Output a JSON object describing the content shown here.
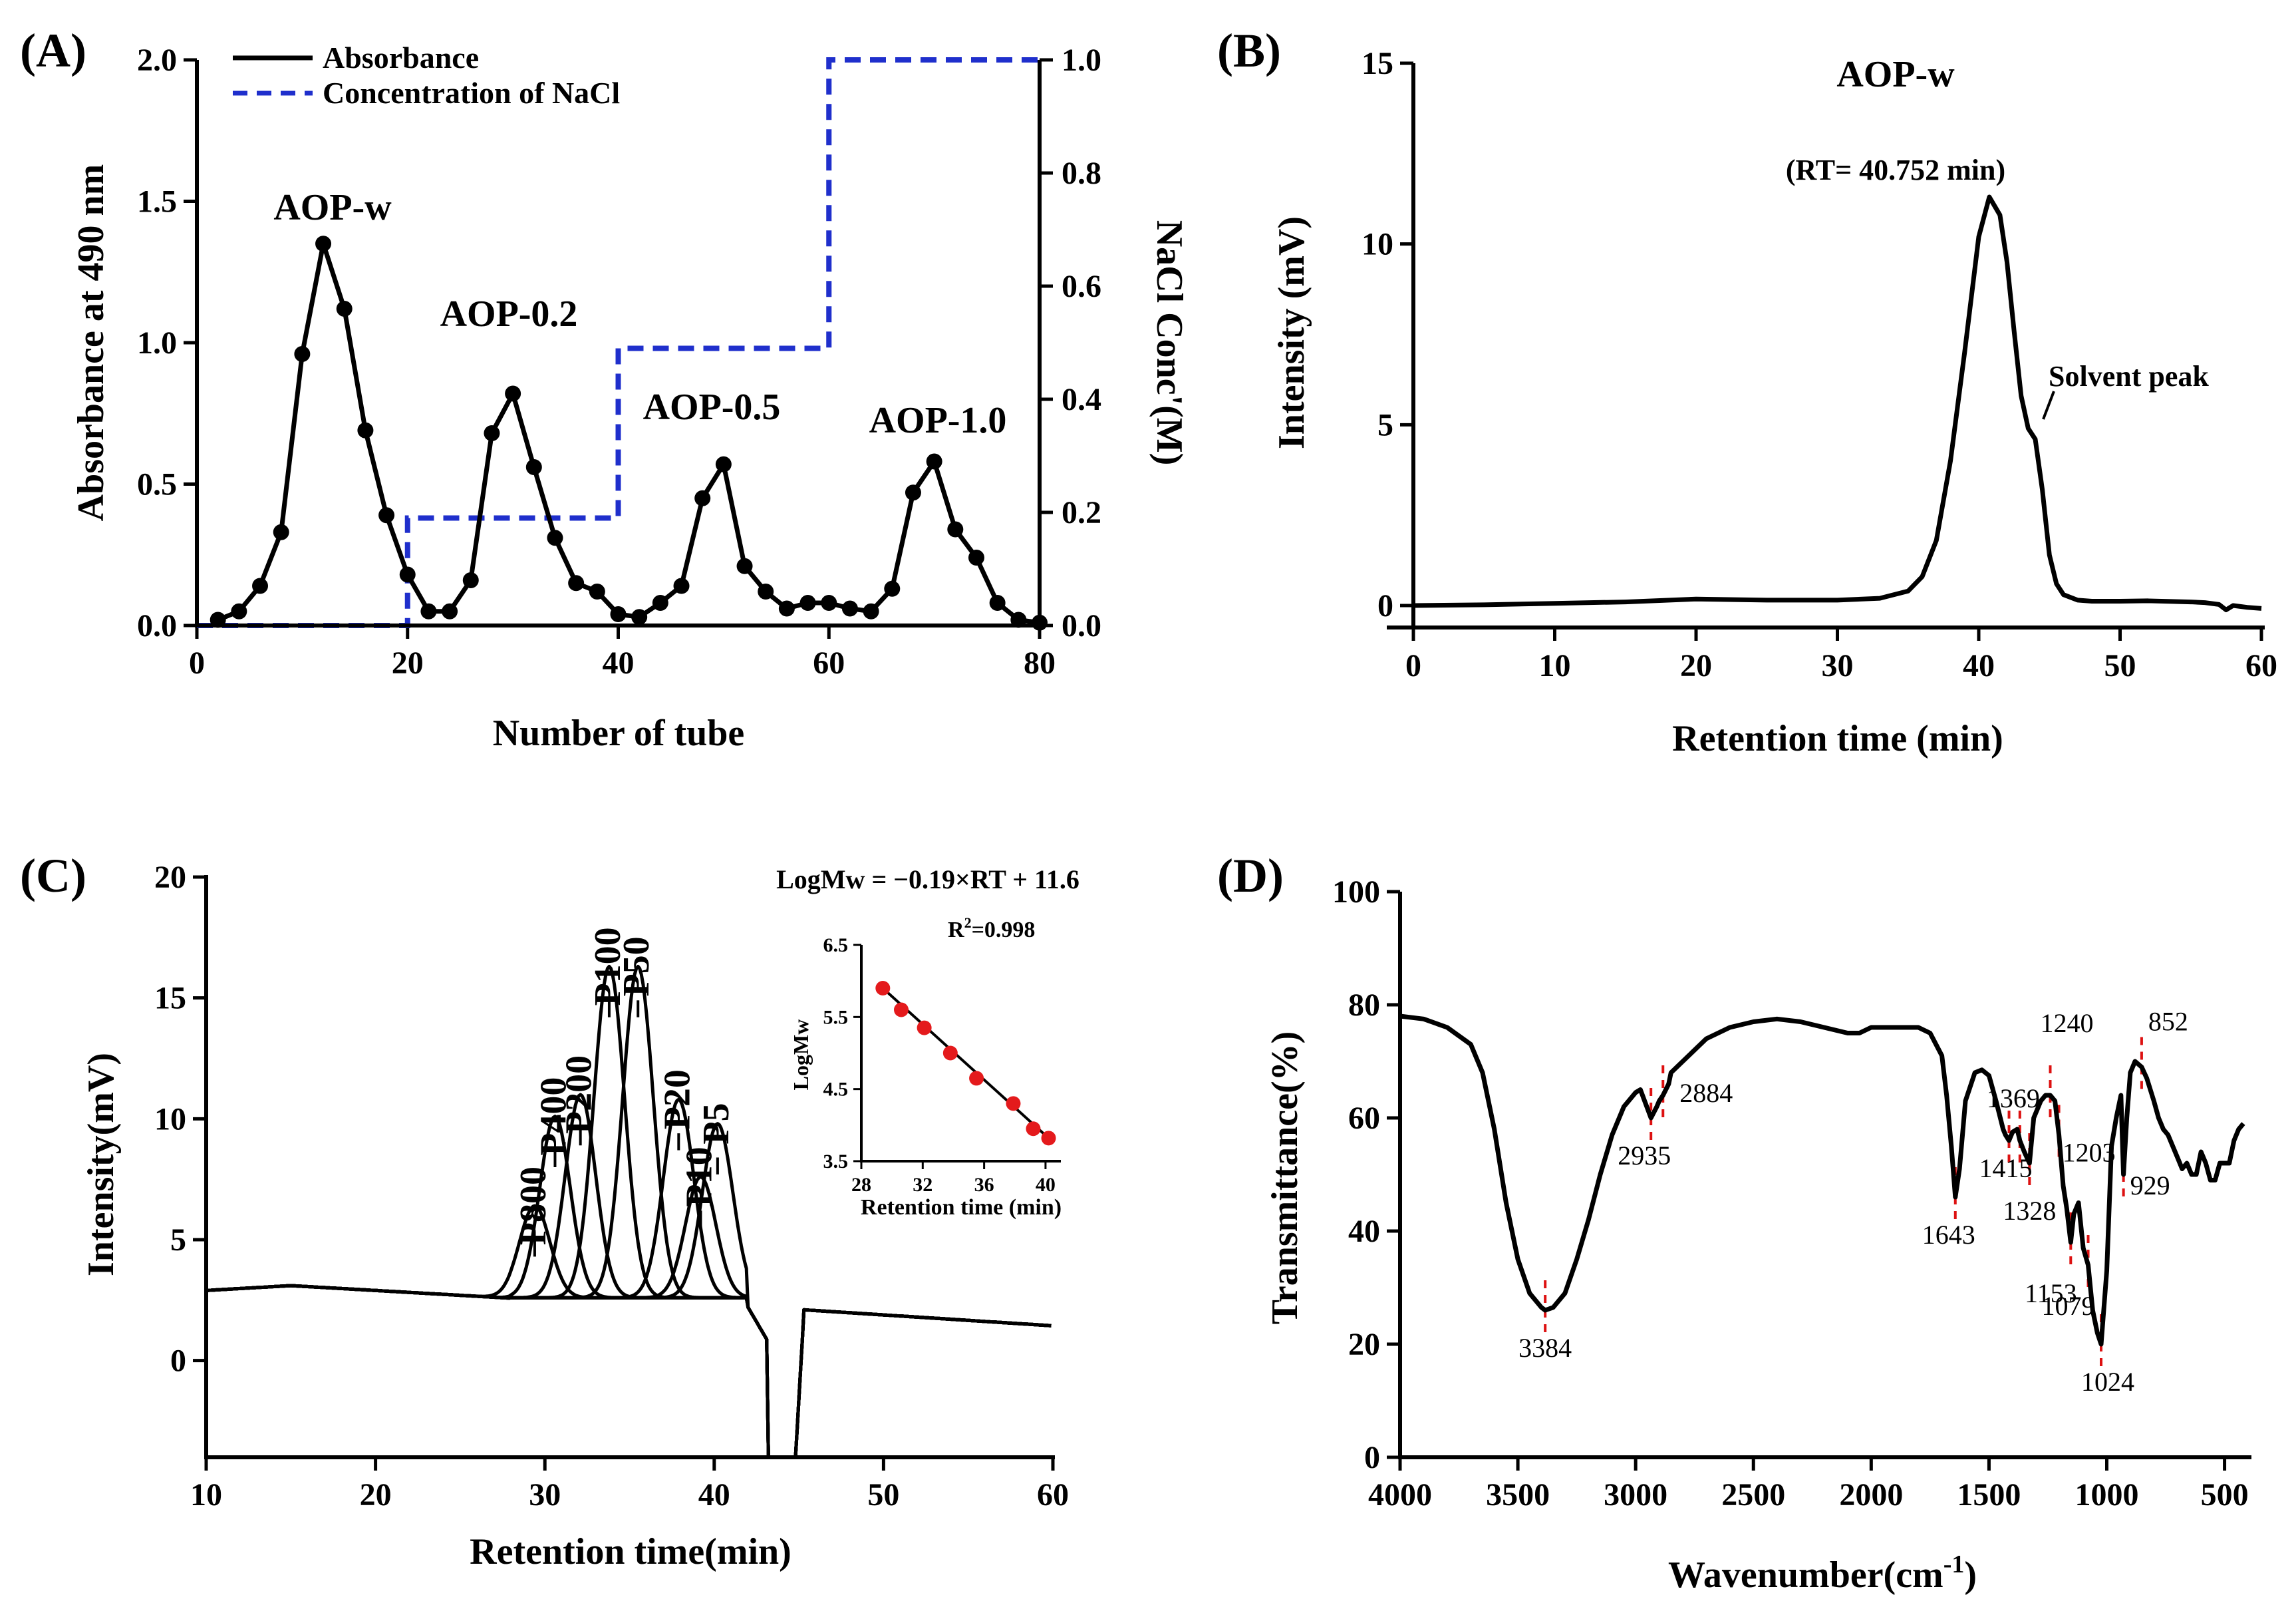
{
  "chart_data": [
    {
      "panel": "(A)",
      "type": "line",
      "xlabel": "Number of tube",
      "ylabel": "Absorbance at 490 nm",
      "y2label": "NaCl Conc'(M)",
      "xlim": [
        0,
        80
      ],
      "ylim": [
        0,
        2.0
      ],
      "y2lim": [
        0,
        1.0
      ],
      "xticks": [
        "0",
        "20",
        "40",
        "60",
        "80"
      ],
      "yticks": [
        "0.0",
        "0.5",
        "1.0",
        "1.5",
        "2.0"
      ],
      "y2ticks": [
        "0.0",
        "0.2",
        "0.4",
        "0.6",
        "0.8",
        "1.0"
      ],
      "legend": [
        "Absorbance",
        "Concentration of NaCl"
      ],
      "series": [
        {
          "name": "Absorbance",
          "color": "#000000",
          "x": [
            2,
            4,
            6,
            8,
            10,
            12,
            14,
            16,
            18,
            20,
            22,
            24,
            26,
            28,
            30,
            32,
            34,
            36,
            38,
            40,
            42,
            44,
            46,
            48,
            50,
            52,
            54,
            56,
            58,
            60,
            62,
            64,
            66,
            68,
            70,
            72,
            74,
            76,
            78,
            80
          ],
          "values": [
            0.02,
            0.05,
            0.14,
            0.33,
            0.96,
            1.35,
            1.12,
            0.69,
            0.39,
            0.18,
            0.05,
            0.05,
            0.16,
            0.68,
            0.82,
            0.56,
            0.31,
            0.15,
            0.12,
            0.04,
            0.03,
            0.08,
            0.14,
            0.45,
            0.57,
            0.21,
            0.12,
            0.06,
            0.08,
            0.08,
            0.06,
            0.05,
            0.13,
            0.47,
            0.58,
            0.34,
            0.24,
            0.08,
            0.02,
            0.01
          ]
        },
        {
          "name": "Concentration of NaCl",
          "color": "#1f2fcc",
          "x": [
            0,
            20,
            20,
            40,
            40,
            60,
            60,
            80
          ],
          "values": [
            0,
            0,
            0.19,
            0.19,
            0.49,
            0.49,
            1.0,
            1.0
          ]
        }
      ],
      "annotations": [
        "AOP-w",
        "AOP-0.2",
        "AOP-0.5",
        "AOP-1.0"
      ]
    },
    {
      "panel": "(B)",
      "type": "line",
      "xlabel": "Retention time (min)",
      "ylabel": "Intensity (mV)",
      "xlim": [
        0,
        60
      ],
      "ylim": [
        0,
        15
      ],
      "xticks": [
        "0",
        "10",
        "20",
        "30",
        "40",
        "50",
        "60"
      ],
      "yticks": [
        "0",
        "5",
        "10",
        "15"
      ],
      "series": [
        {
          "name": "AOP-w",
          "x": [
            0,
            5,
            10,
            15,
            20,
            25,
            30,
            33,
            35,
            36,
            37,
            38,
            39,
            40,
            40.75,
            41.5,
            42,
            42.5,
            43,
            43.5,
            44,
            44.5,
            45,
            45.5,
            46,
            47,
            48,
            50,
            52,
            55,
            56,
            57,
            57.5,
            58,
            59,
            60
          ],
          "values": [
            0,
            0.02,
            0.06,
            0.1,
            0.18,
            0.15,
            0.15,
            0.2,
            0.4,
            0.8,
            1.8,
            4.0,
            7.0,
            10.2,
            11.3,
            10.8,
            9.5,
            7.6,
            5.8,
            4.9,
            4.6,
            3.2,
            1.4,
            0.6,
            0.3,
            0.15,
            0.12,
            0.12,
            0.13,
            0.1,
            0.08,
            0.03,
            -0.12,
            0,
            -0.05,
            -0.08
          ]
        }
      ],
      "annotations": [
        "AOP-w",
        "(RT= 40.752 min)",
        "Solvent peak"
      ]
    },
    {
      "panel": "(C)",
      "type": "line",
      "xlabel": "Retention time(min)",
      "ylabel": "Intensity(mV)",
      "xlim": [
        10,
        60
      ],
      "ylim": [
        -4,
        20
      ],
      "xticks": [
        "10",
        "20",
        "30",
        "40",
        "50",
        "60"
      ],
      "yticks": [
        "0",
        "5",
        "10",
        "15",
        "20"
      ],
      "standards": [
        "P800",
        "P400",
        "P200",
        "P100",
        "P50",
        "P20",
        "P10",
        "P5"
      ],
      "peak_rt": [
        29.4,
        30.6,
        32.1,
        33.8,
        35.5,
        37.9,
        39.2,
        40.2
      ],
      "peak_height": [
        3.8,
        7.5,
        8.4,
        13.7,
        13.7,
        8.2,
        5.0,
        7.2
      ],
      "equation": "LogMw = −0.19×RT + 11.6",
      "inset": {
        "xlabel": "Retention time (min)",
        "ylabel": "LogMw",
        "xlim": [
          28,
          41
        ],
        "ylim": [
          3.5,
          6.5
        ],
        "xticks": [
          "28",
          "32",
          "36",
          "40"
        ],
        "yticks": [
          "3.5",
          "4.5",
          "5.5",
          "6.5"
        ],
        "r2_prefix": "R",
        "r2_sup": "2",
        "r2_value": "=0.998",
        "x": [
          29.4,
          30.6,
          32.1,
          33.8,
          35.5,
          37.9,
          39.2,
          40.2
        ],
        "values": [
          5.9,
          5.6,
          5.35,
          5.0,
          4.65,
          4.3,
          3.95,
          3.82
        ],
        "point_color": "#e41a1c"
      }
    },
    {
      "panel": "(D)",
      "type": "line",
      "xlabel_main": "Wavenumber(cm",
      "xlabel_sup": "-1",
      "xlabel_end": ")",
      "ylabel": "Transmittance(%)",
      "xlim": [
        4000,
        400
      ],
      "ylim": [
        0,
        100
      ],
      "xticks": [
        "4000",
        "3500",
        "3000",
        "2500",
        "2000",
        "1500",
        "1000",
        "500"
      ],
      "yticks": [
        "0",
        "20",
        "40",
        "60",
        "80",
        "100"
      ],
      "series": [
        {
          "name": "FT-IR",
          "x": [
            4000,
            3900,
            3800,
            3700,
            3650,
            3600,
            3550,
            3500,
            3450,
            3400,
            3384,
            3350,
            3300,
            3250,
            3200,
            3150,
            3100,
            3050,
            3000,
            2980,
            2935,
            2910,
            2900,
            2884,
            2860,
            2850,
            2800,
            2700,
            2600,
            2500,
            2400,
            2300,
            2200,
            2100,
            2050,
            2000,
            1950,
            1900,
            1850,
            1800,
            1750,
            1700,
            1680,
            1660,
            1643,
            1625,
            1600,
            1560,
            1530,
            1500,
            1470,
            1440,
            1430,
            1415,
            1400,
            1380,
            1369,
            1350,
            1328,
            1310,
            1280,
            1260,
            1240,
            1220,
            1203,
            1185,
            1170,
            1153,
            1140,
            1120,
            1100,
            1079,
            1060,
            1040,
            1024,
            1000,
            980,
            960,
            940,
            929,
            915,
            900,
            880,
            852,
            830,
            800,
            780,
            760,
            740,
            720,
            700,
            680,
            660,
            640,
            620,
            600,
            580,
            560,
            540,
            520,
            500,
            480,
            460,
            440,
            420
          ],
          "values": [
            78,
            77.5,
            76,
            73,
            68,
            58,
            45,
            35,
            29,
            26.5,
            26,
            26.5,
            29,
            35,
            42,
            50,
            57,
            62,
            64.5,
            65,
            60,
            62,
            63,
            64,
            66,
            68,
            70,
            74,
            76,
            77,
            77.5,
            77,
            76,
            75,
            75,
            76,
            76,
            76,
            76,
            76,
            75,
            71,
            64,
            55,
            46,
            51,
            63,
            68,
            68.5,
            67.5,
            63,
            58,
            57,
            56,
            57.5,
            58,
            56,
            54,
            52,
            60,
            63,
            64,
            64,
            63,
            57,
            48,
            44,
            38,
            43,
            45,
            37,
            34,
            26,
            22,
            20,
            33,
            55,
            60,
            64,
            50,
            60,
            68,
            70,
            69,
            67,
            63,
            60,
            58,
            57,
            55,
            53,
            51,
            52,
            50,
            50,
            54,
            52,
            49,
            49,
            52,
            52,
            52,
            56,
            58,
            59
          ]
        }
      ],
      "band_labels": [
        "3384",
        "2935",
        "2884",
        "1643",
        "1415",
        "1369",
        "1328",
        "1240",
        "1203",
        "1153",
        "1079",
        "1024",
        "929",
        "852"
      ]
    }
  ]
}
